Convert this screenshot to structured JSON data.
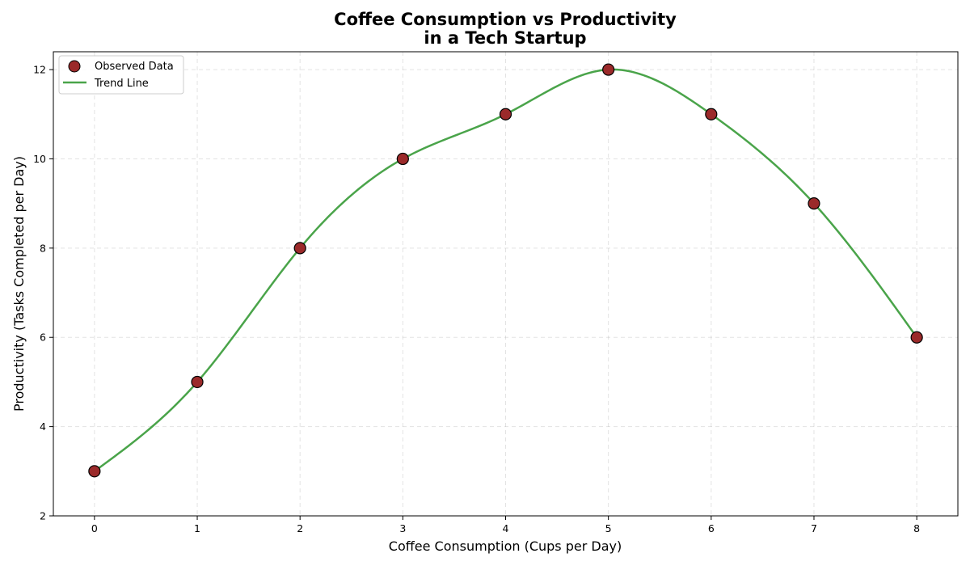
{
  "chart_data": {
    "type": "line",
    "title": "Coffee Consumption vs Productivity",
    "subtitle": "in a Tech Startup",
    "xlabel": "Coffee Consumption (Cups per Day)",
    "ylabel": "Productivity (Tasks Completed per Day)",
    "xlim": [
      -0.4,
      8.4
    ],
    "ylim": [
      2,
      12.4
    ],
    "x_ticks": [
      0,
      1,
      2,
      3,
      4,
      5,
      6,
      7,
      8
    ],
    "y_ticks": [
      2,
      4,
      6,
      8,
      10,
      12
    ],
    "grid": true,
    "legend_position": "top-left",
    "series": [
      {
        "name": "Observed Data",
        "kind": "scatter",
        "color": "#9b2a2a",
        "edge_color": "#000000",
        "x": [
          0,
          1,
          2,
          3,
          4,
          5,
          6,
          7,
          8
        ],
        "y": [
          3,
          5,
          8,
          10,
          11,
          12,
          11,
          9,
          6
        ]
      },
      {
        "name": "Trend Line",
        "kind": "smooth-line",
        "color": "#4aa44a",
        "x": [
          0,
          1,
          2,
          3,
          4,
          5,
          6,
          7,
          8
        ],
        "y": [
          3,
          5,
          8,
          10,
          11,
          12,
          11,
          9,
          6
        ]
      }
    ]
  }
}
